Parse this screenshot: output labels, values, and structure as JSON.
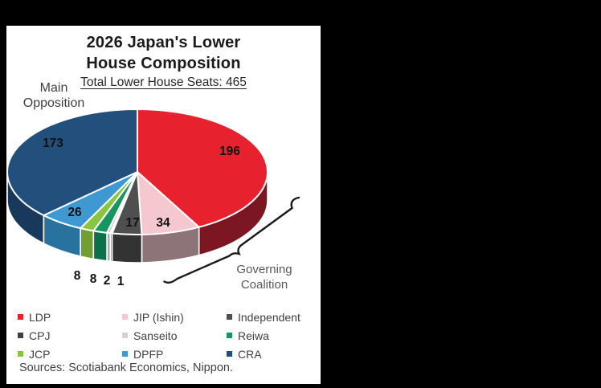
{
  "chart": {
    "title_line1": "2026 Japan's Lower",
    "title_line2": "House Composition",
    "subtitle": "Total Lower House Seats: 465",
    "main_opposition": {
      "line1": "Main",
      "line2": "Opposition"
    },
    "governing_coalition": {
      "line1": "Governing",
      "line2": "Coalition"
    },
    "source": "Sources: Scotiabank Economics, Nippon."
  },
  "chart_data": {
    "type": "pie",
    "style": "3d",
    "title": "2026 Japan's Lower House Composition",
    "subtitle": "Total Lower House Seats: 465",
    "total_seats": 465,
    "start_angle_deg": 0,
    "direction": "clockwise",
    "slices": [
      {
        "label": "LDP",
        "value": 196,
        "color": "#e8212e",
        "side_color": "#7c1622"
      },
      {
        "label": "JIP (Ishin)",
        "value": 34,
        "color": "#f5c8d0",
        "side_color": "#8d7478"
      },
      {
        "label": "Independent",
        "value": 17,
        "color": "#4f4f4f",
        "side_color": "#333333"
      },
      {
        "label": "CPJ",
        "value": 1,
        "color": "#3f3f3f",
        "side_color": "#2e2e2e"
      },
      {
        "label": "Sanseito",
        "value": 2,
        "color": "#d2d2d2",
        "side_color": "#aeaeae"
      },
      {
        "label": "Reiwa",
        "value": 8,
        "color": "#17975f",
        "side_color": "#0d7048"
      },
      {
        "label": "JCP",
        "value": 8,
        "color": "#8bc540",
        "side_color": "#6f9e33"
      },
      {
        "label": "DPFP",
        "value": 26,
        "color": "#3e99d3",
        "side_color": "#27729e"
      },
      {
        "label": "CRA",
        "value": 173,
        "color": "#234f7d",
        "side_color": "#18395c"
      }
    ],
    "legend": {
      "position": "bottom",
      "columns": 3,
      "row_major_order": true
    },
    "annotations": [
      {
        "text": "Main Opposition",
        "points_to": "CRA"
      },
      {
        "text": "Governing Coalition",
        "points_to": "LDP + JIP (Ishin)"
      }
    ]
  }
}
